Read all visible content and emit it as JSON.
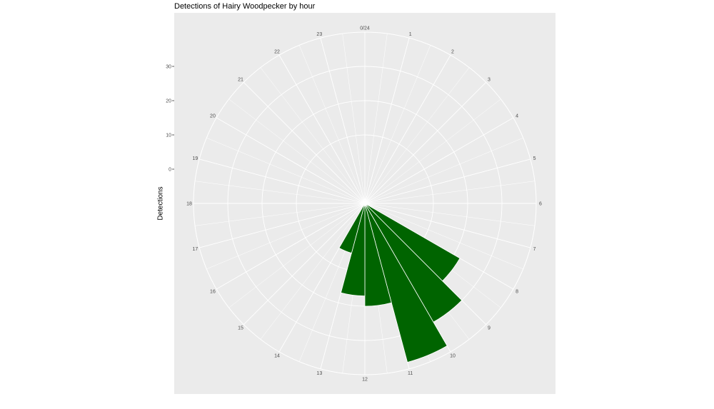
{
  "chart_data": {
    "type": "bar",
    "coord": "polar",
    "title": "Detections of Hairy Woodpecker by hour",
    "xlabel": "",
    "ylabel": "Detections",
    "hour_labels": [
      "0/24",
      "1",
      "2",
      "3",
      "4",
      "5",
      "6",
      "7",
      "8",
      "9",
      "10",
      "11",
      "12",
      "13",
      "14",
      "15",
      "16",
      "17",
      "18",
      "19",
      "20",
      "21",
      "22",
      "23"
    ],
    "categories": [
      9,
      10,
      11,
      12,
      13,
      14
    ],
    "values": [
      22,
      30,
      38,
      20,
      17,
      5
    ],
    "ytick_labels": [
      "0",
      "10",
      "20",
      "30"
    ],
    "yticks": [
      0,
      10,
      20,
      30
    ],
    "rings": [
      10,
      20,
      30,
      40
    ],
    "ylim": [
      -10,
      40
    ],
    "bar_color": "#006400",
    "panel_color": "#ebebeb",
    "grid_color": "#ffffff",
    "grid": true,
    "legend": "none"
  }
}
